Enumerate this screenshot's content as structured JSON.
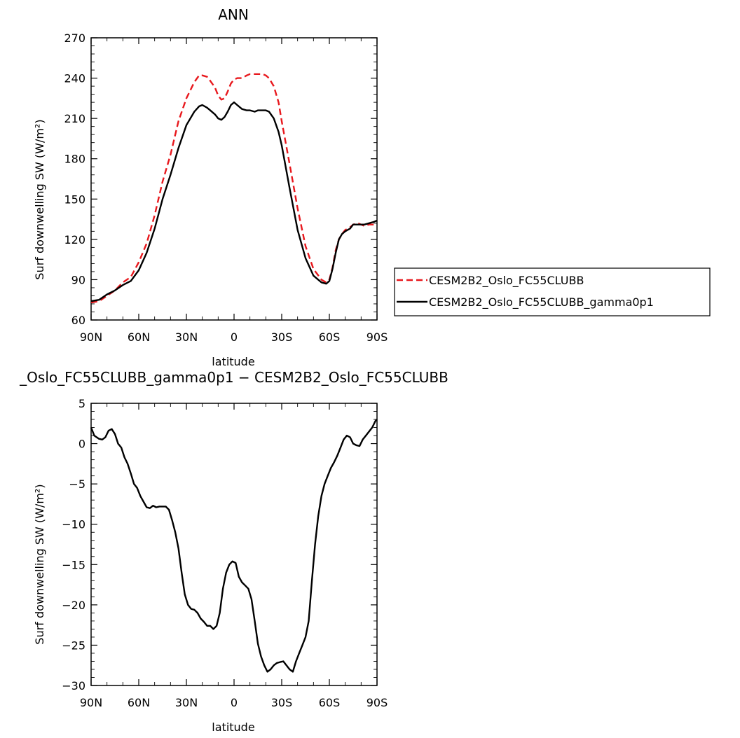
{
  "chart_data": [
    {
      "type": "line",
      "title": "ANN",
      "xlabel": "latitude",
      "ylabel": "Surf downwelling SW (W/m²)",
      "xlim": [
        90,
        -90
      ],
      "ylim": [
        60,
        270
      ],
      "xticks": [
        90,
        60,
        30,
        0,
        -30,
        -60,
        -90
      ],
      "xtick_labels": [
        "90N",
        "60N",
        "30N",
        "0",
        "30S",
        "60S",
        "90S"
      ],
      "yticks": [
        60,
        90,
        120,
        150,
        180,
        210,
        240,
        270
      ],
      "ytick_labels": [
        "60",
        "90",
        "120",
        "150",
        "180",
        "210",
        "240",
        "270"
      ],
      "legend_position": "right",
      "series": [
        {
          "name": "CESM2B2_Oslo_FC55CLUBB",
          "color": "#e8181d",
          "dash": "dashed",
          "x": [
            90,
            85,
            80,
            75,
            70,
            65,
            60,
            55,
            50,
            45,
            40,
            35,
            30,
            25,
            22,
            20,
            17,
            15,
            12,
            10,
            8,
            6,
            4,
            2,
            0,
            -2,
            -5,
            -8,
            -10,
            -13,
            -15,
            -18,
            -20,
            -22,
            -25,
            -28,
            -30,
            -35,
            -40,
            -45,
            -50,
            -55,
            -58,
            -60,
            -62,
            -64,
            -66,
            -68,
            -70,
            -73,
            -75,
            -78,
            -80,
            -82,
            -85,
            -88,
            -90
          ],
          "y": [
            73,
            74,
            78,
            82,
            88,
            92,
            103,
            117,
            138,
            163,
            183,
            208,
            225,
            237,
            242,
            242,
            241,
            238,
            233,
            227,
            224,
            225,
            230,
            236,
            239,
            240,
            240,
            242,
            243,
            243,
            243,
            243,
            242,
            240,
            234,
            222,
            208,
            176,
            143,
            115,
            98,
            90,
            88,
            90,
            99,
            112,
            120,
            124,
            127,
            129,
            131,
            132,
            131,
            130,
            131,
            131,
            131
          ]
        },
        {
          "name": "CESM2B2_Oslo_FC55CLUBB_gamma0p1",
          "color": "#000000",
          "dash": "solid",
          "x": [
            90,
            85,
            80,
            75,
            70,
            65,
            60,
            55,
            50,
            45,
            40,
            35,
            30,
            25,
            22,
            20,
            17,
            15,
            12,
            10,
            8,
            6,
            4,
            2,
            0,
            -2,
            -5,
            -8,
            -10,
            -13,
            -15,
            -18,
            -20,
            -22,
            -25,
            -28,
            -30,
            -35,
            -40,
            -45,
            -50,
            -55,
            -58,
            -60,
            -62,
            -64,
            -66,
            -68,
            -70,
            -73,
            -75,
            -78,
            -80,
            -82,
            -85,
            -88,
            -90
          ],
          "y": [
            74,
            75,
            79,
            82,
            86,
            89,
            97,
            110,
            128,
            150,
            168,
            188,
            205,
            215,
            219,
            220,
            218,
            216,
            213,
            210,
            209,
            211,
            215,
            220,
            222,
            220,
            217,
            216,
            216,
            215,
            216,
            216,
            216,
            215,
            210,
            200,
            190,
            158,
            127,
            106,
            93,
            88,
            87,
            89,
            98,
            110,
            120,
            124,
            126,
            128,
            131,
            131,
            131,
            131,
            132,
            133,
            134
          ]
        }
      ]
    },
    {
      "type": "line",
      "title": "_Oslo_FC55CLUBB_gamma0p1 − CESM2B2_Oslo_FC55CLUBB",
      "xlabel": "latitude",
      "ylabel": "Surf downwelling SW (W/m²)",
      "xlim": [
        90,
        -90
      ],
      "ylim": [
        -30,
        5
      ],
      "xticks": [
        90,
        60,
        30,
        0,
        -30,
        -60,
        -90
      ],
      "xtick_labels": [
        "90N",
        "60N",
        "30N",
        "0",
        "30S",
        "60S",
        "90S"
      ],
      "yticks": [
        -30,
        -25,
        -20,
        -15,
        -10,
        -5,
        0,
        5
      ],
      "ytick_labels": [
        "−30",
        "−25",
        "−20",
        "−15",
        "−10",
        "−5",
        "0",
        "5"
      ],
      "series": [
        {
          "color": "#000000",
          "dash": "solid",
          "x": [
            90,
            88,
            85,
            83,
            81,
            79,
            77,
            75,
            73,
            71,
            69,
            67,
            65,
            63,
            61,
            59,
            57,
            55,
            53,
            51,
            49,
            47,
            45,
            43,
            41,
            39,
            37,
            35,
            33,
            31,
            29,
            27,
            25,
            23,
            21,
            19,
            17,
            15,
            13,
            11,
            9,
            7,
            5,
            3,
            1,
            -1,
            -3,
            -5,
            -7,
            -9,
            -11,
            -13,
            -15,
            -17,
            -19,
            -21,
            -23,
            -25,
            -27,
            -29,
            -31,
            -33,
            -35,
            -37,
            -39,
            -41,
            -43,
            -45,
            -47,
            -49,
            -51,
            -53,
            -55,
            -57,
            -59,
            -61,
            -63,
            -65,
            -67,
            -69,
            -71,
            -73,
            -75,
            -77,
            -79,
            -81,
            -83,
            -85,
            -87,
            -89,
            -90
          ],
          "y": [
            2.0,
            1.0,
            0.6,
            0.5,
            0.8,
            1.6,
            1.8,
            1.2,
            0.0,
            -0.5,
            -1.7,
            -2.5,
            -3.7,
            -5.0,
            -5.5,
            -6.5,
            -7.2,
            -7.9,
            -8.0,
            -7.7,
            -7.9,
            -7.8,
            -7.8,
            -7.8,
            -8.2,
            -9.5,
            -11.0,
            -13.0,
            -16.0,
            -18.7,
            -20.0,
            -20.5,
            -20.6,
            -21.0,
            -21.7,
            -22.1,
            -22.6,
            -22.6,
            -23.0,
            -22.6,
            -21.0,
            -18.0,
            -16.0,
            -15.0,
            -14.6,
            -14.8,
            -16.5,
            -17.2,
            -17.6,
            -18.0,
            -19.3,
            -22.0,
            -24.8,
            -26.4,
            -27.5,
            -28.3,
            -28.0,
            -27.5,
            -27.2,
            -27.1,
            -27.0,
            -27.5,
            -28.0,
            -28.3,
            -27.0,
            -26.0,
            -25.0,
            -24.0,
            -22.0,
            -17.0,
            -12.5,
            -9.0,
            -6.5,
            -5.0,
            -4.0,
            -3.0,
            -2.3,
            -1.5,
            -0.5,
            0.5,
            1.0,
            0.8,
            0.0,
            -0.2,
            -0.3,
            0.5,
            1.0,
            1.5,
            2.0,
            2.8,
            3.0
          ]
        }
      ]
    }
  ]
}
